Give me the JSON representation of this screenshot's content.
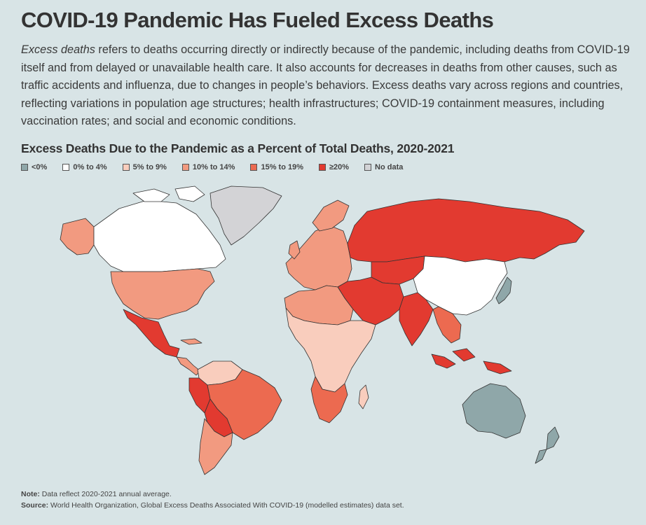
{
  "title": "COVID-19 Pandemic Has Fueled Excess Deaths",
  "intro": {
    "emphasis": "Excess deaths",
    "text": " refers to deaths occurring directly or indirectly because of the pandemic, including deaths from COVID-19 itself and from delayed or unavailable health care. It also accounts for decreases in deaths from other causes, such as traffic accidents and influenza, due to changes in people’s behaviors. Excess deaths vary across regions and countries, reflecting variations in population age structures; health infrastructures; COVID-19 containment measures, including vaccination rates; and social and economic conditions."
  },
  "map_title": "Excess Deaths Due to the Pandemic as a Percent of Total Deaths, 2020-2021",
  "legend": [
    {
      "label": "<0%",
      "color": "#8fa7a9"
    },
    {
      "label": "0% to 4%",
      "color": "#ffffff"
    },
    {
      "label": "5% to 9%",
      "color": "#f9cdbd"
    },
    {
      "label": "10% to 14%",
      "color": "#f29a80"
    },
    {
      "label": "15% to 19%",
      "color": "#ec6a50"
    },
    {
      "label": "≥20%",
      "color": "#e23a30"
    },
    {
      "label": "No data",
      "color": "#d3d3d6"
    }
  ],
  "regions": [
    {
      "name": "alaska",
      "category": "10% to 14%"
    },
    {
      "name": "canada",
      "category": "0% to 4%"
    },
    {
      "name": "greenland",
      "category": "No data"
    },
    {
      "name": "united-states",
      "category": "10% to 14%"
    },
    {
      "name": "mexico",
      "category": "≥20%"
    },
    {
      "name": "central-america",
      "category": "10% to 14%"
    },
    {
      "name": "colombia-venezuela",
      "category": "5% to 9%"
    },
    {
      "name": "peru",
      "category": "≥20%"
    },
    {
      "name": "brazil",
      "category": "15% to 19%"
    },
    {
      "name": "bolivia-paraguay",
      "category": "≥20%"
    },
    {
      "name": "argentina-chile",
      "category": "10% to 14%"
    },
    {
      "name": "europe",
      "category": "10% to 14%"
    },
    {
      "name": "russia",
      "category": "≥20%"
    },
    {
      "name": "north-africa",
      "category": "10% to 14%"
    },
    {
      "name": "sub-saharan-africa",
      "category": "5% to 9%"
    },
    {
      "name": "southern-africa",
      "category": "15% to 19%"
    },
    {
      "name": "middle-east",
      "category": "≥20%"
    },
    {
      "name": "india",
      "category": "≥20%"
    },
    {
      "name": "kazakhstan",
      "category": "≥20%"
    },
    {
      "name": "mongolia-china",
      "category": "0% to 4%"
    },
    {
      "name": "southeast-asia",
      "category": "15% to 19%"
    },
    {
      "name": "indonesia",
      "category": "≥20%"
    },
    {
      "name": "japan",
      "category": "<0%"
    },
    {
      "name": "australia",
      "category": "<0%"
    },
    {
      "name": "new-zealand",
      "category": "<0%"
    }
  ],
  "note": {
    "label": "Note:",
    "text": " Data reflect 2020-2021 annual average."
  },
  "source": {
    "label": "Source:",
    "text": " World Health Organization, Global Excess Deaths Associated With COVID-19 (modelled estimates) data set."
  }
}
